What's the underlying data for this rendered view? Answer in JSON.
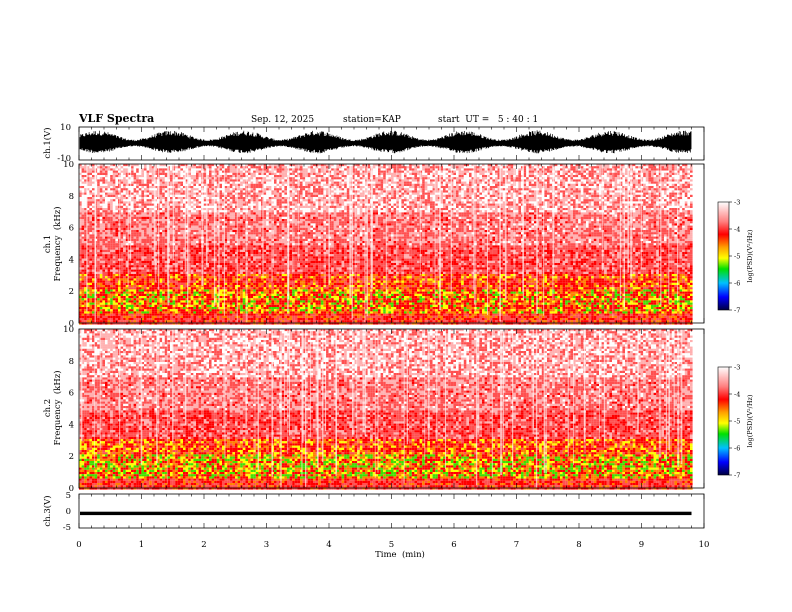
{
  "header": {
    "title": "VLF Spectra",
    "date": "Sep. 12, 2025",
    "station": "station=KAP",
    "start_ut": "start  UT =   5 : 40 : 1"
  },
  "chart_data": [
    {
      "type": "line",
      "panel": "ch1-waveform",
      "ylabel": "ch.1(V)",
      "ylim": [
        -10,
        10
      ],
      "yticks": [
        "10",
        "-10"
      ],
      "xlim": [
        0,
        10
      ],
      "data_end_min": 9.8,
      "amplitude_range": [
        -6,
        8
      ]
    },
    {
      "type": "heatmap",
      "panel": "ch1-spectrogram",
      "ylabel": "ch.1\nFrequency  (kHz)",
      "ylim": [
        0,
        10
      ],
      "yticks": [
        "0",
        "2",
        "4",
        "6",
        "8",
        "10"
      ],
      "xlim": [
        0,
        10
      ],
      "data_end_min": 9.8,
      "colorbar": {
        "label": "log(PSD)(V²/Hz)",
        "range": [
          -7,
          -3
        ],
        "ticks": [
          "-3",
          "-4",
          "-5",
          "-6",
          "-7"
        ]
      }
    },
    {
      "type": "heatmap",
      "panel": "ch2-spectrogram",
      "ylabel": "ch.2\nFrequency  (kHz)",
      "ylim": [
        0,
        10
      ],
      "yticks": [
        "0",
        "2",
        "4",
        "6",
        "8",
        "10"
      ],
      "xlim": [
        0,
        10
      ],
      "data_end_min": 9.8,
      "colorbar": {
        "label": "log(PSD)(V²/Hz)",
        "range": [
          -7,
          -3
        ],
        "ticks": [
          "-3",
          "-4",
          "-5",
          "-6",
          "-7"
        ]
      }
    },
    {
      "type": "line",
      "panel": "ch3-waveform",
      "ylabel": "ch.3(V)",
      "ylim": [
        -5,
        5
      ],
      "yticks": [
        "5",
        "0",
        "-5"
      ],
      "xlim": [
        0,
        10
      ],
      "xlabel": "Time  (min)",
      "xticks": [
        "0",
        "1",
        "2",
        "3",
        "4",
        "5",
        "6",
        "7",
        "8",
        "9",
        "10"
      ],
      "data_end_min": 9.8,
      "amplitude_range": [
        -1.2,
        -0.2
      ]
    }
  ],
  "colors": {
    "axis": "#000000",
    "spec_low": "#ffffff",
    "spec_mid": "#ff0000",
    "spec_high": "#00e000"
  }
}
